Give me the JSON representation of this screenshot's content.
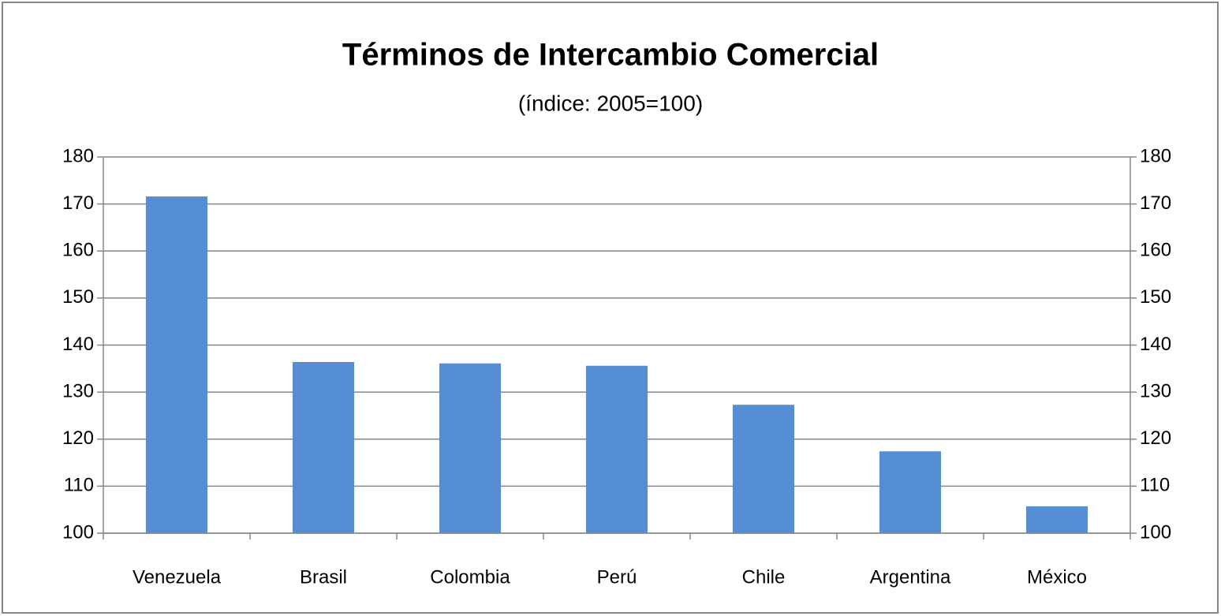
{
  "chart_data": {
    "type": "bar",
    "title": "Términos de Intercambio Comercial",
    "subtitle": "(índice: 2005=100)",
    "categories": [
      "Venezuela",
      "Brasil",
      "Colombia",
      "Perú",
      "Chile",
      "Argentina",
      "México"
    ],
    "values": [
      171.6,
      136.4,
      136.1,
      135.6,
      127.3,
      117.4,
      105.7
    ],
    "color": "#558ed5",
    "ylim": [
      100,
      180
    ],
    "yticks": [
      100,
      110,
      120,
      130,
      140,
      150,
      160,
      170,
      180
    ],
    "y2lim": [
      100,
      180
    ],
    "y2ticks": [
      100,
      110,
      120,
      130,
      140,
      150,
      160,
      170,
      180
    ],
    "grid": true
  }
}
